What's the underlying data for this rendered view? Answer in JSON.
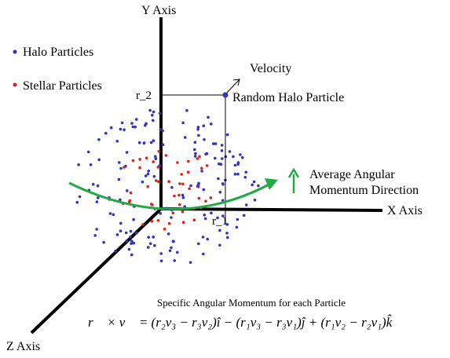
{
  "axes": {
    "y_label": "Y Axis",
    "x_label": "X Axis",
    "z_label": "Z Axis"
  },
  "legend": {
    "halo_label": "Halo Particles",
    "stellar_label": "Stellar Particles",
    "halo_color": "#3333bb",
    "stellar_color": "#e02020"
  },
  "annotations": {
    "velocity": "Velocity",
    "random_halo_particle": "Random Halo Particle",
    "r2": "r_2",
    "r1": "r_1",
    "avg_momentum_line1": "Average Angular",
    "avg_momentum_line2": "Momentum Direction",
    "momentum_color": "#22aa44"
  },
  "formula": {
    "caption": "Specific Angular Momentum for each Particle",
    "equation": "r⃗ × v⃗ = (r₂v₃ − r₃v₂)î − (r₁v₃ − r₃v₁)ĵ + (r₁v₂ − r₂v₁)k̂"
  }
}
